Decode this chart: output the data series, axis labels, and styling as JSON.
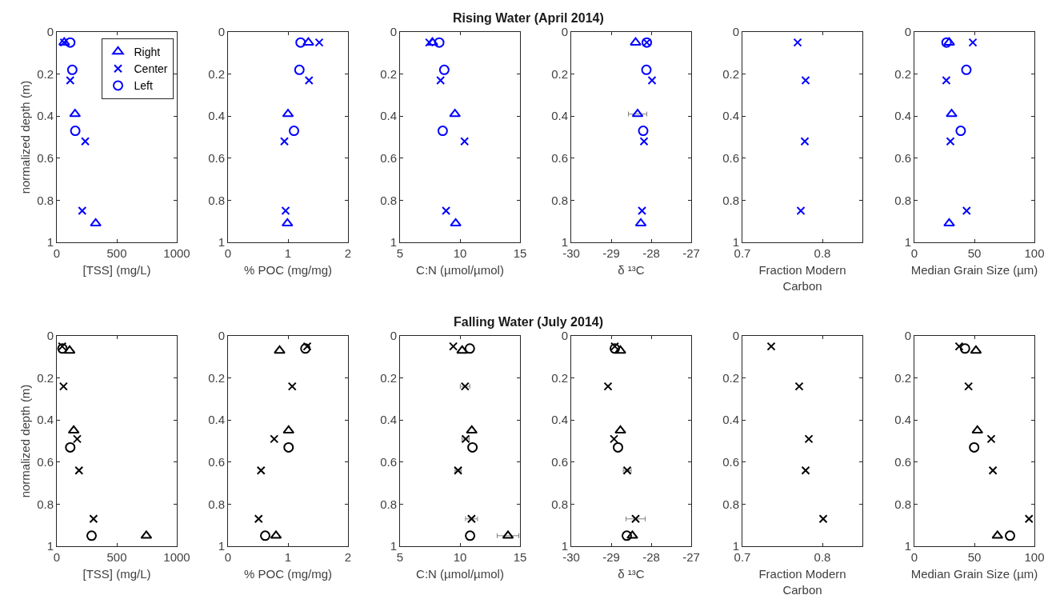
{
  "chart_data": [
    {
      "type": "scatter",
      "xlabel": "[TSS] (mg/L)",
      "ylabel": "normalized depth (m)",
      "xlim": [
        0,
        1000
      ],
      "xticks": [
        0,
        500,
        1000
      ],
      "ylim": [
        1,
        0
      ],
      "yticks": [
        0,
        0.2,
        0.4,
        0.6,
        0.8,
        1
      ],
      "legend": "top right",
      "series": [
        {
          "name": "Right",
          "color": "#0000ff",
          "marker": "triangle",
          "x": [
            152,
            324,
            62
          ],
          "values": [
            0.39,
            0.91,
            0.05
          ]
        },
        {
          "name": "Center",
          "color": "#0000ff",
          "marker": "cross",
          "x": [
            112,
            237,
            212,
            60
          ],
          "values": [
            0.23,
            0.52,
            0.85,
            0.05
          ]
        },
        {
          "name": "Left",
          "color": "#0000ff",
          "marker": "circle",
          "x": [
            112,
            129,
            154
          ],
          "values": [
            0.05,
            0.18,
            0.47
          ]
        }
      ]
    },
    {
      "type": "scatter",
      "xlabel": "% POC (mg/mg)",
      "xlim": [
        0,
        2
      ],
      "xticks": [
        0,
        1,
        2
      ],
      "ylim": [
        1,
        0
      ],
      "yticks": [
        0,
        0.2,
        0.4,
        0.6,
        0.8,
        1
      ],
      "series": [
        {
          "color": "#0000ff",
          "marker": "triangle",
          "x": [
            1.34,
            1.0,
            0.99
          ],
          "values": [
            0.05,
            0.39,
            0.91
          ]
        },
        {
          "color": "#0000ff",
          "marker": "cross",
          "x": [
            1.52,
            1.35,
            0.94,
            0.96
          ],
          "values": [
            0.05,
            0.23,
            0.52,
            0.85
          ]
        },
        {
          "color": "#0000ff",
          "marker": "circle",
          "x": [
            1.21,
            1.19,
            1.1
          ],
          "values": [
            0.05,
            0.18,
            0.47
          ]
        }
      ]
    },
    {
      "type": "scatter",
      "title": "Rising Water (April 2014)",
      "xlabel": "C:N (µmol/µmol)",
      "xlim": [
        5,
        15
      ],
      "xticks": [
        5,
        10,
        15
      ],
      "ylim": [
        1,
        0
      ],
      "yticks": [
        0,
        0.2,
        0.4,
        0.6,
        0.8,
        1
      ],
      "series": [
        {
          "color": "#0000ff",
          "marker": "triangle",
          "x": [
            7.7,
            9.58,
            9.64
          ],
          "values": [
            0.05,
            0.39,
            0.91
          ]
        },
        {
          "color": "#0000ff",
          "marker": "cross",
          "x": [
            7.44,
            8.38,
            10.38,
            8.84
          ],
          "values": [
            0.05,
            0.23,
            0.52,
            0.85
          ]
        },
        {
          "color": "#0000ff",
          "marker": "circle",
          "x": [
            8.27,
            8.69,
            8.56
          ],
          "values": [
            0.05,
            0.18,
            0.47
          ]
        }
      ]
    },
    {
      "type": "scatter",
      "xlabel": "δ ¹³C",
      "xlim": [
        -30,
        -27
      ],
      "xticks": [
        -30,
        -29,
        -28,
        -27
      ],
      "ylim": [
        1,
        0
      ],
      "yticks": [
        0,
        0.2,
        0.4,
        0.6,
        0.8,
        1
      ],
      "series": [
        {
          "color": "#0000ff",
          "marker": "triangle",
          "x": [
            -28.39,
            -28.34,
            -28.26
          ],
          "values": [
            0.05,
            0.39,
            0.91
          ],
          "xerrors": [
            null,
            0.23,
            null
          ]
        },
        {
          "color": "#0000ff",
          "marker": "cross",
          "x": [
            -27.98,
            -28.18,
            -28.23,
            -28.11
          ],
          "values": [
            0.23,
            0.52,
            0.85,
            0.05
          ]
        },
        {
          "color": "#0000ff",
          "marker": "circle",
          "x": [
            -28.12,
            -28.2,
            -28.11
          ],
          "values": [
            0.18,
            0.47,
            0.05
          ]
        }
      ]
    },
    {
      "type": "scatter",
      "xlabel": "Fraction Modern\nCarbon",
      "xlim": [
        0.7,
        0.85
      ],
      "xticks": [
        0.7,
        0.8
      ],
      "ylim": [
        1,
        0
      ],
      "yticks": [
        0,
        0.2,
        0.4,
        0.6,
        0.8,
        1
      ],
      "series": [
        {
          "color": "#0000ff",
          "marker": "cross",
          "x": [
            0.769,
            0.779,
            0.778,
            0.773
          ],
          "values": [
            0.05,
            0.23,
            0.52,
            0.85
          ]
        }
      ]
    },
    {
      "type": "scatter",
      "xlabel": "Median Grain Size (µm)",
      "xlim": [
        0,
        100
      ],
      "xticks": [
        0,
        50,
        100
      ],
      "ylim": [
        1,
        0
      ],
      "yticks": [
        0,
        0.2,
        0.4,
        0.6,
        0.8,
        1
      ],
      "series": [
        {
          "color": "#0000ff",
          "marker": "triangle",
          "x": [
            29,
            31,
            29
          ],
          "values": [
            0.05,
            0.39,
            0.91
          ]
        },
        {
          "color": "#0000ff",
          "marker": "cross",
          "x": [
            48.7,
            26.6,
            30,
            43.5
          ],
          "values": [
            0.05,
            0.23,
            0.52,
            0.85
          ]
        },
        {
          "color": "#0000ff",
          "marker": "circle",
          "x": [
            26.8,
            43.3,
            38.6
          ],
          "values": [
            0.05,
            0.18,
            0.47
          ]
        }
      ]
    },
    {
      "type": "scatter",
      "xlabel": "[TSS] (mg/L)",
      "ylabel": "normalized depth (m)",
      "xlim": [
        0,
        1000
      ],
      "xticks": [
        0,
        500,
        1000
      ],
      "ylim": [
        1,
        0
      ],
      "yticks": [
        0,
        0.2,
        0.4,
        0.6,
        0.8,
        1
      ],
      "series": [
        {
          "color": "#000000",
          "marker": "triangle",
          "x": [
            107,
            141,
            746
          ],
          "values": [
            0.07,
            0.45,
            0.95
          ]
        },
        {
          "color": "#000000",
          "marker": "cross",
          "x": [
            45,
            56,
            170,
            185,
            306
          ],
          "values": [
            0.05,
            0.24,
            0.49,
            0.64,
            0.87
          ]
        },
        {
          "color": "#000000",
          "marker": "circle",
          "x": [
            47,
            112,
            290
          ],
          "values": [
            0.06,
            0.53,
            0.95
          ]
        }
      ]
    },
    {
      "type": "scatter",
      "xlabel": "% POC (mg/mg)",
      "xlim": [
        0,
        2
      ],
      "xticks": [
        0,
        1,
        2
      ],
      "ylim": [
        1,
        0
      ],
      "yticks": [
        0,
        0.2,
        0.4,
        0.6,
        0.8,
        1
      ],
      "series": [
        {
          "color": "#000000",
          "marker": "triangle",
          "x": [
            0.86,
            1.01,
            0.8
          ],
          "values": [
            0.07,
            0.45,
            0.95
          ]
        },
        {
          "color": "#000000",
          "marker": "cross",
          "x": [
            1.32,
            1.07,
            0.77,
            0.55,
            0.51
          ],
          "values": [
            0.05,
            0.24,
            0.49,
            0.64,
            0.87
          ]
        },
        {
          "color": "#000000",
          "marker": "circle",
          "x": [
            1.29,
            1.01,
            0.62
          ],
          "values": [
            0.06,
            0.53,
            0.95
          ]
        }
      ]
    },
    {
      "type": "scatter",
      "title": "Falling Water (July 2014)",
      "xlabel": "C:N (µmol/µmol)",
      "xlim": [
        5,
        15
      ],
      "xticks": [
        5,
        10,
        15
      ],
      "ylim": [
        1,
        0
      ],
      "yticks": [
        0,
        0.2,
        0.4,
        0.6,
        0.8,
        1
      ],
      "series": [
        {
          "color": "#000000",
          "marker": "triangle",
          "x": [
            10.18,
            10.98,
            14.0
          ],
          "values": [
            0.07,
            0.45,
            0.95
          ],
          "xerrors": [
            null,
            null,
            0.9
          ]
        },
        {
          "color": "#000000",
          "marker": "cross",
          "x": [
            9.44,
            10.42,
            10.47,
            9.84,
            10.96
          ],
          "values": [
            0.05,
            0.24,
            0.49,
            0.64,
            0.87
          ],
          "xerrors": [
            null,
            0.4,
            0.3,
            0.25,
            0.5
          ]
        },
        {
          "color": "#000000",
          "marker": "circle",
          "x": [
            10.82,
            11.04,
            10.84
          ],
          "values": [
            0.06,
            0.53,
            0.95
          ]
        }
      ]
    },
    {
      "type": "scatter",
      "xlabel": "δ ¹³C",
      "xlim": [
        -30,
        -27
      ],
      "xticks": [
        -30,
        -29,
        -28,
        -27
      ],
      "ylim": [
        1,
        0
      ],
      "yticks": [
        0,
        0.2,
        0.4,
        0.6,
        0.8,
        1
      ],
      "series": [
        {
          "color": "#000000",
          "marker": "triangle",
          "x": [
            -28.77,
            -28.77,
            -28.47
          ],
          "values": [
            0.07,
            0.45,
            0.95
          ]
        },
        {
          "color": "#000000",
          "marker": "cross",
          "x": [
            -28.91,
            -29.08,
            -28.93,
            -28.6,
            -28.39
          ],
          "values": [
            0.05,
            0.24,
            0.49,
            0.64,
            0.87
          ],
          "xerrors": [
            null,
            null,
            null,
            0.1,
            0.24
          ]
        },
        {
          "color": "#000000",
          "marker": "circle",
          "x": [
            -28.91,
            -28.83,
            -28.61
          ],
          "values": [
            0.06,
            0.53,
            0.95
          ]
        }
      ]
    },
    {
      "type": "scatter",
      "xlabel": "Fraction Modern\nCarbon",
      "xlim": [
        0.7,
        0.85
      ],
      "xticks": [
        0.7,
        0.8
      ],
      "ylim": [
        1,
        0
      ],
      "yticks": [
        0,
        0.2,
        0.4,
        0.6,
        0.8,
        1
      ],
      "series": [
        {
          "color": "#000000",
          "marker": "cross",
          "x": [
            0.736,
            0.771,
            0.783,
            0.779,
            0.801
          ],
          "values": [
            0.05,
            0.24,
            0.49,
            0.64,
            0.87
          ]
        }
      ]
    },
    {
      "type": "scatter",
      "xlabel": "Median Grain Size (µm)",
      "xlim": [
        0,
        100
      ],
      "xticks": [
        0,
        50,
        100
      ],
      "ylim": [
        1,
        0
      ],
      "yticks": [
        0,
        0.2,
        0.4,
        0.6,
        0.8,
        1
      ],
      "series": [
        {
          "color": "#000000",
          "marker": "triangle",
          "x": [
            51.3,
            52.5,
            69.2
          ],
          "values": [
            0.07,
            0.45,
            0.95
          ]
        },
        {
          "color": "#000000",
          "marker": "cross",
          "x": [
            37.3,
            45.1,
            64,
            65.4,
            95.5
          ],
          "values": [
            0.05,
            0.24,
            0.49,
            0.64,
            0.87
          ]
        },
        {
          "color": "#000000",
          "marker": "circle",
          "x": [
            42.2,
            49.8,
            79.7
          ],
          "values": [
            0.06,
            0.53,
            0.95
          ]
        }
      ]
    }
  ]
}
